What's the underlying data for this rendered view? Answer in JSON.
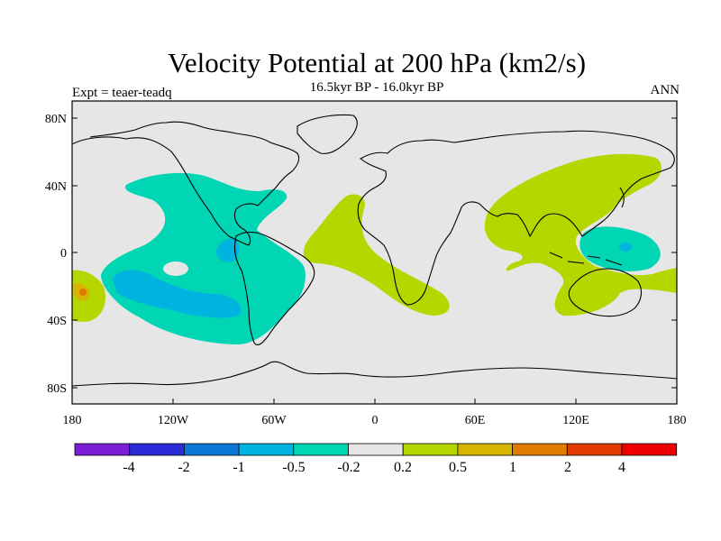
{
  "title": "Velocity Potential at 200 hPa (km2/s)",
  "subtitle": "16.5kyr BP - 16.0kyr BP",
  "expt": "Expt = teaer-teadq",
  "season": "ANN",
  "lat_labels": [
    "80N",
    "40N",
    "0",
    "40S",
    "80S"
  ],
  "lon_labels": [
    "180",
    "120W",
    "60W",
    "0",
    "60E",
    "120E",
    "180"
  ],
  "colorbar": {
    "labels": [
      "-4",
      "-2",
      "-1",
      "-0.5",
      "-0.2",
      "0.2",
      "0.5",
      "1",
      "2",
      "4"
    ],
    "colors": [
      "#7a1fd6",
      "#2a2ad6",
      "#0a78d6",
      "#00b4e0",
      "#00d6b4",
      "#e6e6e6",
      "#b6d600",
      "#d6b400",
      "#e07a00",
      "#e03a00",
      "#ee0000"
    ]
  },
  "colors": {
    "ocean_neutral": "#e6e6e6",
    "neg_02": "#00d6b4",
    "neg_05": "#00b4e0",
    "pos_02": "#b6d600",
    "pos_05": "#d6b400",
    "pos_1": "#e07a00"
  }
}
